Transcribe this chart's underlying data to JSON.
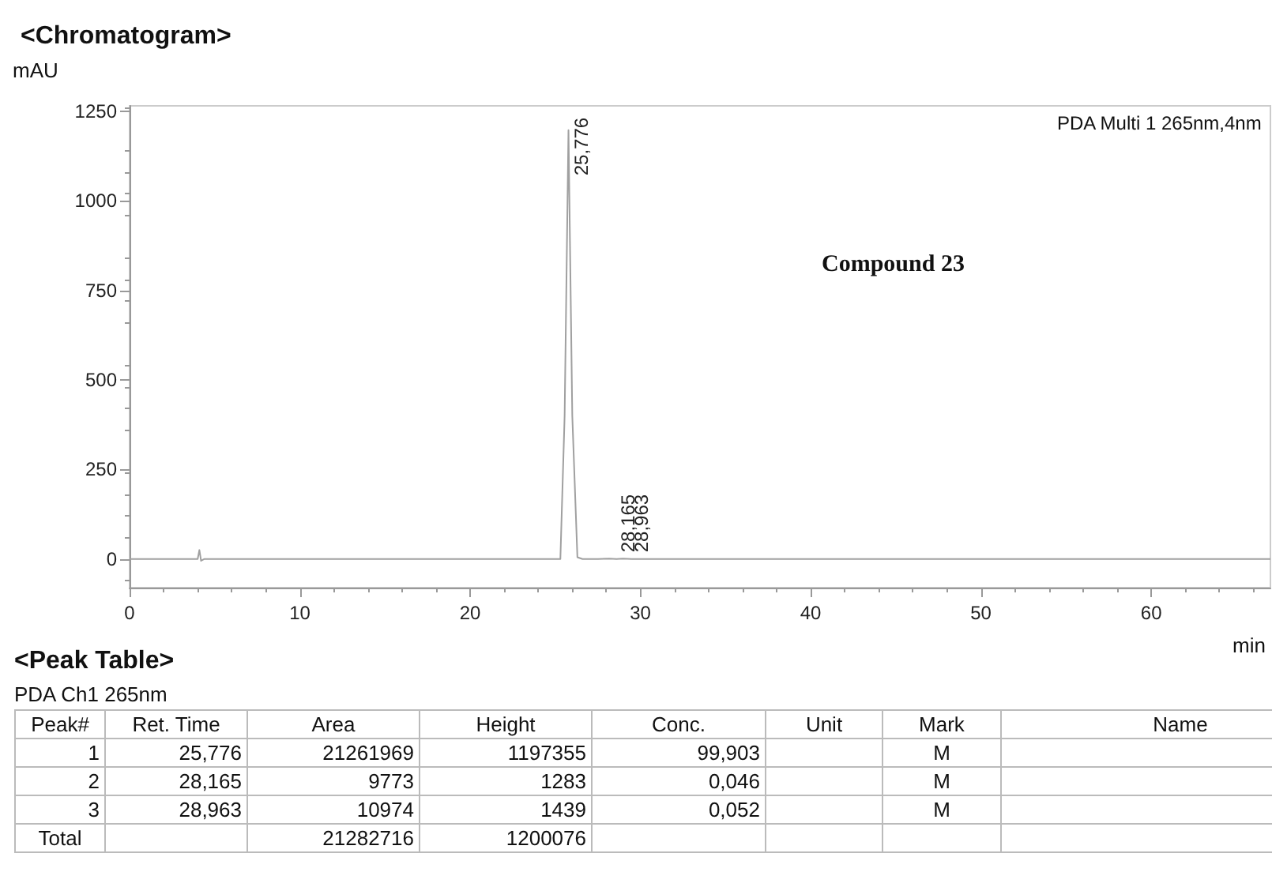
{
  "chart_data": {
    "type": "line",
    "title": "<Chromatogram>",
    "ylabel": "mAU",
    "xlabel": "min",
    "x": [
      0,
      4.0,
      4.1,
      4.2,
      4.4,
      25.3,
      25.55,
      25.776,
      26.0,
      26.3,
      26.6,
      27.5,
      28.165,
      28.6,
      28.963,
      29.5,
      67
    ],
    "series": [
      {
        "color": "#a0a0a0",
        "values": [
          0,
          0,
          25,
          -5,
          0,
          0,
          400,
          1197,
          400,
          5,
          0,
          0,
          1,
          0,
          1,
          0,
          0
        ]
      }
    ],
    "xlim": [
      0,
      67
    ],
    "xticks": [
      0,
      10,
      20,
      30,
      40,
      50,
      60
    ],
    "ylim": [
      -80,
      1265
    ],
    "yticks": [
      0,
      250,
      500,
      750,
      1000,
      1250
    ],
    "grid": false,
    "marker": "none",
    "line_style": "solid",
    "annotations": [
      "PDA Multi 1 265nm,4nm",
      "Compound 23",
      {
        "text": "25,776",
        "x": 25.776,
        "y": 1197
      },
      {
        "text": "28,165",
        "x": 28.165,
        "y": 1
      },
      {
        "text": "28,963",
        "x": 28.963,
        "y": 1
      },
      "<Peak Table>",
      "PDA Ch1 265nm",
      "Peak#\tRet. Time\tArea\tHeight\tConc.\tUnit\tMark\tName",
      "1\t25,776\t21261969\t1197355\t99,903\t\tM\t",
      "2\t28,165\t9773\t1283\t0,046\t\tM\t",
      "3\t28,963\t10974\t1439\t0,052\t\tM\t",
      "Total\t\t21282716\t1200076\t\t\t\t"
    ]
  }
}
